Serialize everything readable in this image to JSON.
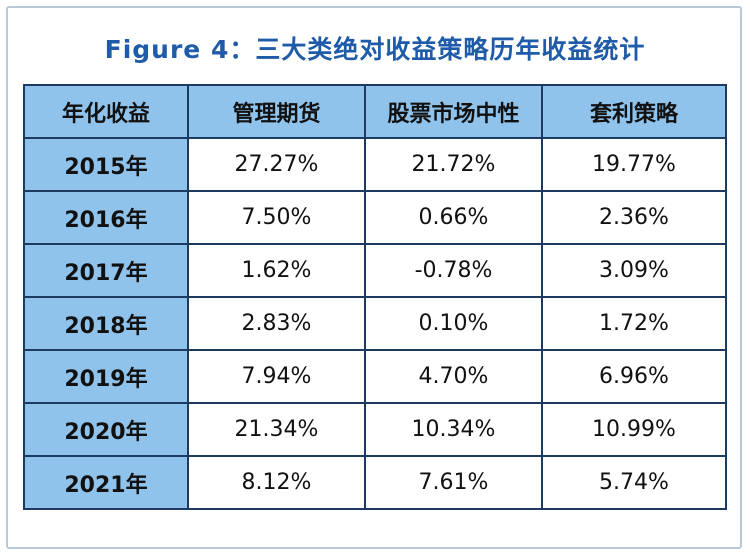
{
  "title": "Figure 4：三大类绝对收益策略历年收益统计",
  "headers": [
    "年化收益",
    "管理期货",
    "股票市场中性",
    "套利策略"
  ],
  "rows": [
    {
      "year": "2015年",
      "values": [
        "27.27%",
        "21.72%",
        "19.77%"
      ]
    },
    {
      "year": "2016年",
      "values": [
        "7.50%",
        "0.66%",
        "2.36%"
      ]
    },
    {
      "year": "2017年",
      "values": [
        "1.62%",
        "-0.78%",
        "3.09%"
      ]
    },
    {
      "year": "2018年",
      "values": [
        "2.83%",
        "0.10%",
        "1.72%"
      ]
    },
    {
      "year": "2019年",
      "values": [
        "7.94%",
        "4.70%",
        "6.96%"
      ]
    },
    {
      "year": "2020年",
      "values": [
        "21.34%",
        "10.34%",
        "10.99%"
      ]
    },
    {
      "year": "2021年",
      "values": [
        "8.12%",
        "7.61%",
        "5.74%"
      ]
    }
  ],
  "colors": {
    "title": "#1f5ba8",
    "header_fill": "#8fc3ec",
    "border": "#1c3a62",
    "frame": "#b9c7d6"
  }
}
